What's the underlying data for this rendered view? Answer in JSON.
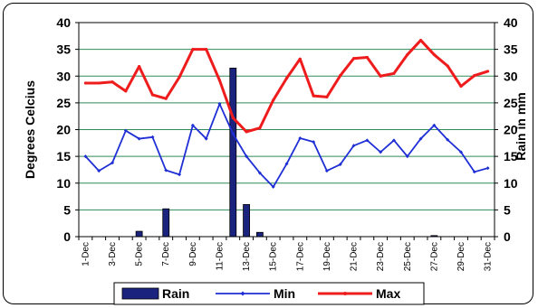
{
  "chart_data": {
    "type": "bar+line",
    "categories": [
      "1-Dec",
      "2-Dec",
      "3-Dec",
      "4-Dec",
      "5-Dec",
      "6-Dec",
      "7-Dec",
      "8-Dec",
      "9-Dec",
      "10-Dec",
      "11-Dec",
      "12-Dec",
      "13-Dec",
      "14-Dec",
      "15-Dec",
      "16-Dec",
      "17-Dec",
      "18-Dec",
      "19-Dec",
      "20-Dec",
      "21-Dec",
      "22-Dec",
      "23-Dec",
      "24-Dec",
      "25-Dec",
      "26-Dec",
      "27-Dec",
      "28-Dec",
      "29-Dec",
      "30-Dec",
      "31-Dec"
    ],
    "x_tick_labels": [
      "1-Dec",
      "3-Dec",
      "5-Dec",
      "7-Dec",
      "9-Dec",
      "11-Dec",
      "13-Dec",
      "15-Dec",
      "17-Dec",
      "19-Dec",
      "21-Dec",
      "23-Dec",
      "25-Dec",
      "27-Dec",
      "29-Dec",
      "31-Dec"
    ],
    "series": [
      {
        "name": "Rain",
        "type": "bar",
        "axis": "right",
        "color": "#1a237e",
        "values": [
          0,
          0,
          0,
          0,
          1,
          0,
          5.2,
          0,
          0,
          0,
          0,
          31.5,
          6,
          0.8,
          0,
          0,
          0,
          0,
          0,
          0,
          0,
          0,
          0,
          0,
          0,
          0,
          0.2,
          0,
          0,
          0,
          0
        ]
      },
      {
        "name": "Min",
        "type": "line",
        "axis": "left",
        "color": "#1f2fd6",
        "values": [
          15,
          12.3,
          13.8,
          19.8,
          18.3,
          18.6,
          12.4,
          11.6,
          20.8,
          18.3,
          24.8,
          19.2,
          15,
          11.9,
          9.3,
          13.6,
          18.4,
          17.7,
          12.3,
          13.5,
          17,
          18,
          15.8,
          18,
          15,
          18.3,
          20.8,
          18.1,
          15.8,
          12.1,
          12.8
        ]
      },
      {
        "name": "Max",
        "type": "line",
        "axis": "left",
        "color": "#ee1c1c",
        "values": [
          28.7,
          28.7,
          28.9,
          27.2,
          31.8,
          26.5,
          25.8,
          29.8,
          35,
          35,
          29.2,
          22.2,
          19.6,
          20.3,
          25.5,
          29.6,
          33.2,
          26.3,
          26.1,
          30.1,
          33.3,
          33.5,
          30,
          30.5,
          34,
          36.7,
          34,
          31.9,
          28.1,
          30.1,
          30.9
        ]
      }
    ],
    "ylabel": "Degrees Celcius",
    "ylabel_right": "Rain in mm",
    "ylim": [
      0,
      40
    ],
    "ylim_right": [
      0,
      40
    ],
    "y_ticks": [
      "0",
      "5",
      "10",
      "15",
      "20",
      "25",
      "30",
      "35",
      "40"
    ],
    "y_ticks_right": [
      "0",
      "5",
      "10",
      "15",
      "20",
      "25",
      "30",
      "35",
      "40"
    ],
    "grid": true,
    "grid_color": "#2e8b57",
    "legend": {
      "placement": "bottom",
      "items": [
        "Rain",
        "Min",
        "Max"
      ]
    }
  }
}
